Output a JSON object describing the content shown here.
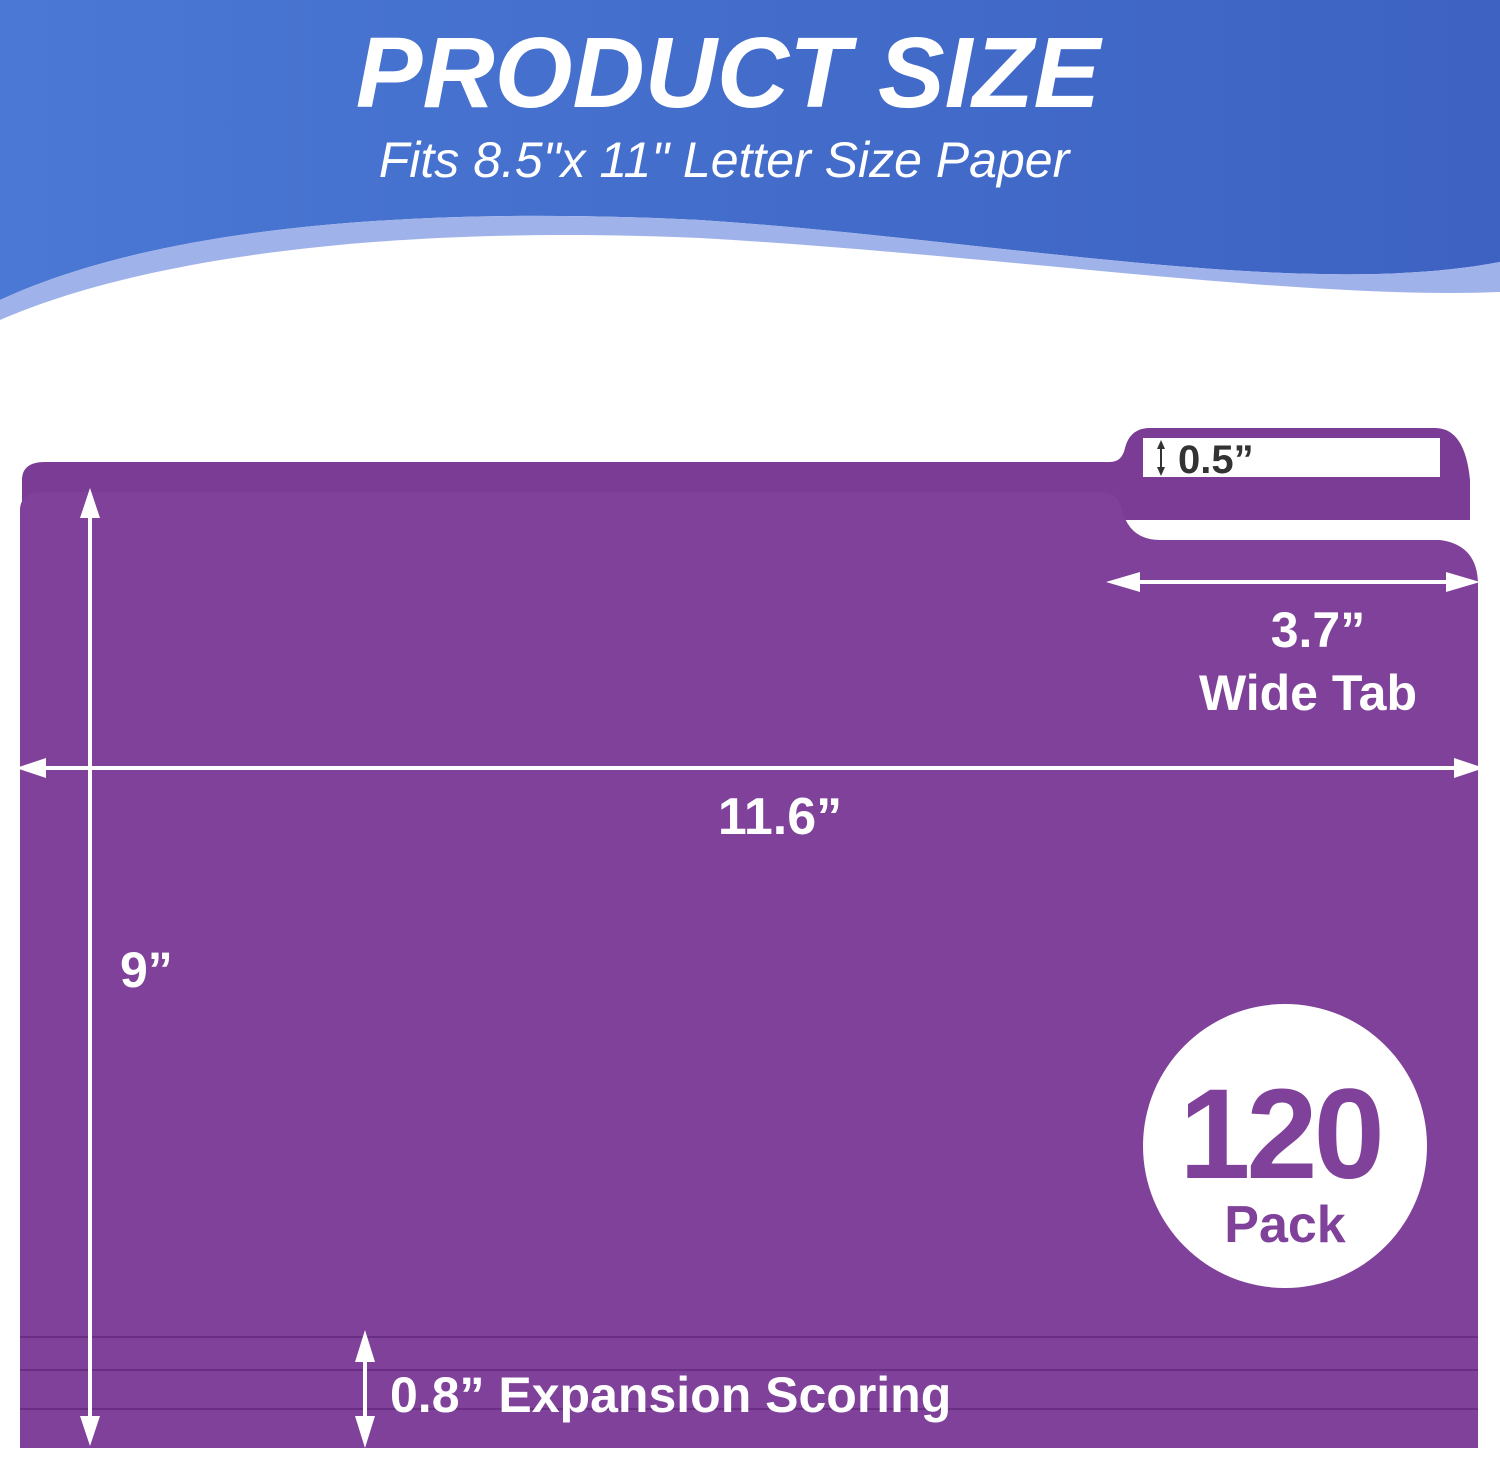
{
  "header": {
    "title": "PRODUCT SIZE",
    "subtitle": "Fits 8.5\"x 11\" Letter Size Paper"
  },
  "dimensions": {
    "tab_height": "0.5”",
    "tab_width": "3.7”",
    "tab_width_label": "Wide Tab",
    "width": "11.6”",
    "height": "9”",
    "expansion": "0.8” Expansion Scoring"
  },
  "badge": {
    "count": "120",
    "unit": "Pack"
  },
  "colors": {
    "banner": "#4169c8",
    "folder": "#7d3f98",
    "tab_label_text": "#333333"
  }
}
